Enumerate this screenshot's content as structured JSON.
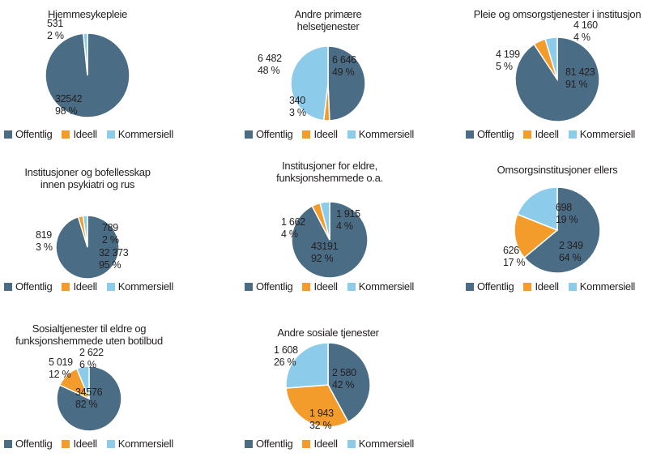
{
  "colors": {
    "Offentlig": "#4b6c85",
    "Ideell": "#f39c2c",
    "Kommersiell": "#8ccbea"
  },
  "legend": [
    "Offentlig",
    "Ideell",
    "Kommersiell"
  ],
  "chart_data": [
    {
      "type": "pie",
      "title": [
        "Hjemmesykepleie"
      ],
      "categories": [
        "Offentlig",
        "Ideell",
        "Kommersiell"
      ],
      "values": [
        32542,
        null,
        531
      ],
      "labels": [
        [
          "32542",
          "98 %"
        ],
        null,
        [
          "531",
          "2 %"
        ]
      ]
    },
    {
      "type": "pie",
      "title": [
        "Andre primære",
        "helsetjenester"
      ],
      "categories": [
        "Offentlig",
        "Ideell",
        "Kommersiell"
      ],
      "values": [
        6646,
        340,
        6482
      ],
      "labels": [
        [
          "6 646",
          "49 %"
        ],
        [
          "340",
          "3 %"
        ],
        [
          "6 482",
          "48 %"
        ]
      ]
    },
    {
      "type": "pie",
      "title": [
        "Pleie og omsorgstjenester i institusjon"
      ],
      "categories": [
        "Offentlig",
        "Ideell",
        "Kommersiell"
      ],
      "values": [
        81423,
        4199,
        4160
      ],
      "labels": [
        [
          "81 423",
          "91 %"
        ],
        [
          "4 199",
          "5 %"
        ],
        [
          "4 160",
          "4 %"
        ]
      ]
    },
    {
      "type": "pie",
      "title": [
        "Institusjoner og bofellesskap",
        "innen psykiatri og rus"
      ],
      "categories": [
        "Offentlig",
        "Ideell",
        "Kommersiell"
      ],
      "values": [
        32373,
        819,
        789
      ],
      "labels": [
        [
          "32 373",
          "95 %"
        ],
        [
          "819",
          "3 %"
        ],
        [
          "789",
          "2 %"
        ]
      ]
    },
    {
      "type": "pie",
      "title": [
        "Institusjoner for eldre,",
        "funksjonshemmede o.a."
      ],
      "categories": [
        "Offentlig",
        "Ideell",
        "Kommersiell"
      ],
      "values": [
        43191,
        1662,
        1915
      ],
      "labels": [
        [
          "43191",
          "92 %"
        ],
        [
          "1 662",
          "4 %"
        ],
        [
          "1 915",
          "4 %"
        ]
      ]
    },
    {
      "type": "pie",
      "title": [
        "Omsorgsinstitusjoner ellers"
      ],
      "categories": [
        "Offentlig",
        "Ideell",
        "Kommersiell"
      ],
      "values": [
        2349,
        626,
        698
      ],
      "labels": [
        [
          "2 349",
          "64 %"
        ],
        [
          "626",
          "17 %"
        ],
        [
          "698",
          "19 %"
        ]
      ]
    },
    {
      "type": "pie",
      "title": [
        "Sosialtjenester til eldre og",
        "funksjonshemmede uten botilbud"
      ],
      "categories": [
        "Offentlig",
        "Ideell",
        "Kommersiell"
      ],
      "values": [
        34576,
        5019,
        2622
      ],
      "labels": [
        [
          "34576",
          "82 %"
        ],
        [
          "5 019",
          "12 %"
        ],
        [
          "2 622",
          "6 %"
        ]
      ]
    },
    {
      "type": "pie",
      "title": [
        "Andre sosiale tjenester"
      ],
      "categories": [
        "Offentlig",
        "Ideell",
        "Kommersiell"
      ],
      "values": [
        2580,
        1943,
        1608
      ],
      "labels": [
        [
          "2 580",
          "42 %"
        ],
        [
          "1 943",
          "32 %"
        ],
        [
          "1 608",
          "26 %"
        ]
      ]
    }
  ]
}
